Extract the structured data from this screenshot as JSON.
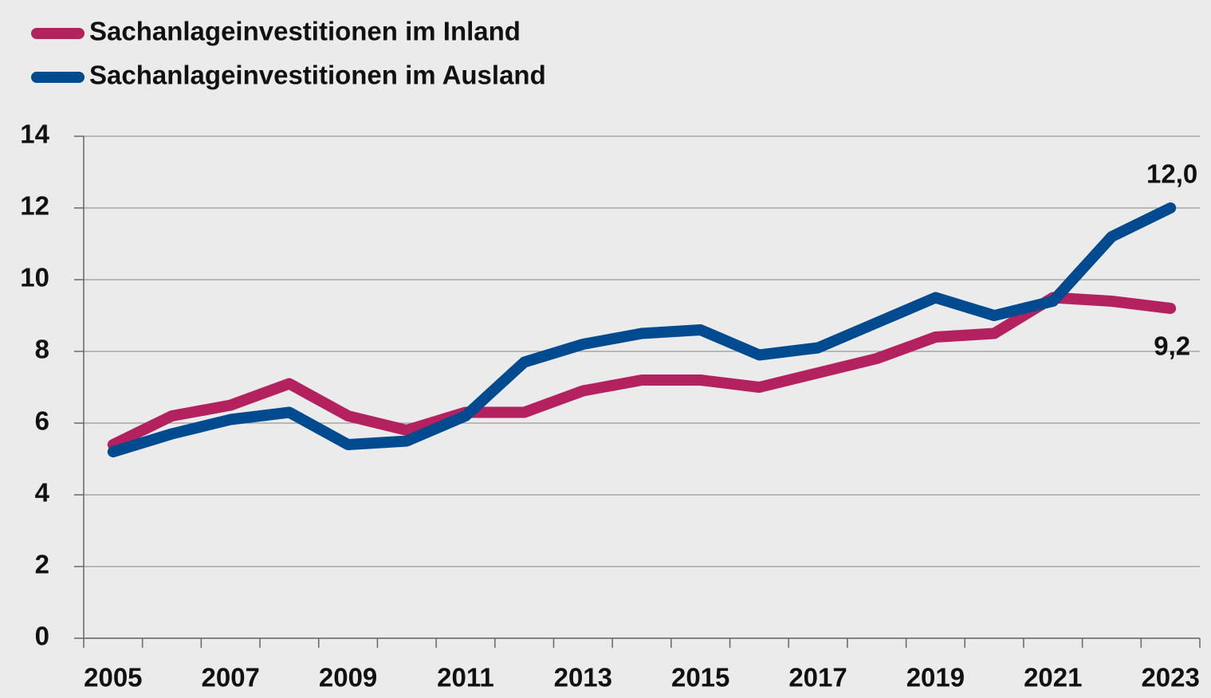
{
  "chart_data": {
    "type": "line",
    "categories": [
      "2005",
      null,
      "2007",
      null,
      "2009",
      null,
      "2011",
      null,
      "2013",
      null,
      "2015",
      null,
      "2017",
      null,
      "2019",
      null,
      "2021",
      null,
      "2023"
    ],
    "series": [
      {
        "name": "Sachanlageinvestitionen im Inland",
        "color": "#b3215f",
        "values": [
          5.4,
          6.2,
          6.5,
          7.1,
          6.2,
          5.8,
          6.3,
          6.3,
          6.9,
          7.2,
          7.2,
          7.0,
          7.4,
          7.8,
          8.4,
          8.5,
          9.5,
          9.4,
          9.2
        ],
        "value_labels": [
          null,
          null,
          null,
          null,
          null,
          null,
          null,
          null,
          null,
          null,
          null,
          null,
          null,
          null,
          null,
          null,
          null,
          null,
          "9,2"
        ]
      },
      {
        "name": "Sachanlageinvestitionen im Ausland",
        "color": "#004a90",
        "values": [
          5.2,
          5.7,
          6.1,
          6.3,
          5.4,
          5.5,
          6.2,
          7.7,
          8.2,
          8.5,
          8.6,
          7.9,
          8.1,
          8.8,
          9.5,
          9.0,
          9.4,
          11.2,
          12.0
        ],
        "value_labels": [
          null,
          null,
          null,
          null,
          null,
          null,
          null,
          null,
          null,
          null,
          null,
          null,
          null,
          null,
          null,
          null,
          null,
          null,
          "12,0"
        ]
      }
    ],
    "ylim": [
      0,
      14
    ],
    "yticks": [
      0,
      2,
      4,
      6,
      8,
      10,
      12,
      14
    ],
    "grid": true,
    "legend": "top-left"
  }
}
